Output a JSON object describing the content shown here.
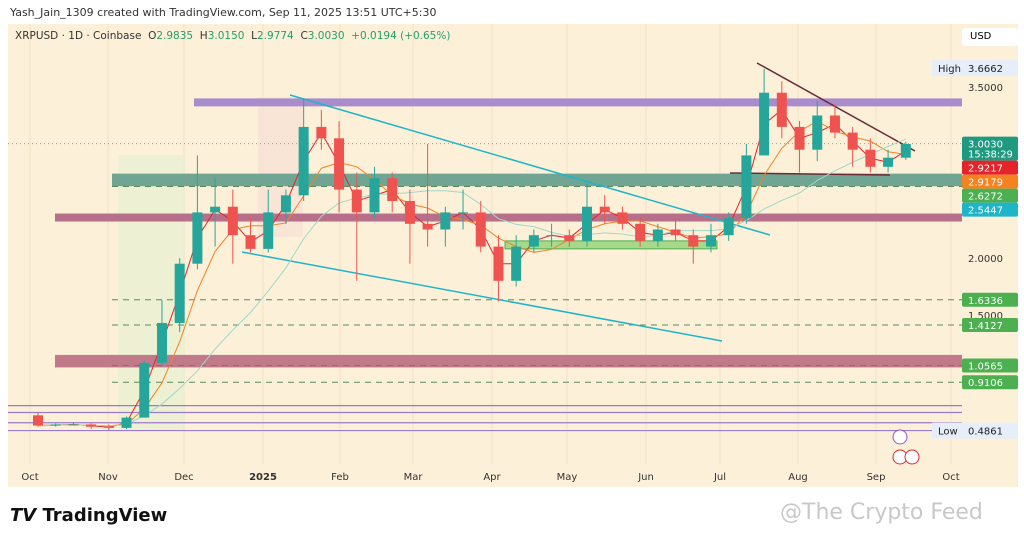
{
  "header": {
    "credit": "Yash_Jain_1309 created with TradingView.com, Sep 11, 2025 13:51 UTC+5:30",
    "symbol": "XRPUSD · 1D · Coinbase",
    "o_label": "O",
    "o": "2.9835",
    "h_label": "H",
    "h": "3.0150",
    "l_label": "L",
    "l": "2.9774",
    "c_label": "C",
    "c": "3.0030",
    "change": "+0.0194 (+0.65%)"
  },
  "currency": "USD",
  "footer": {
    "brand": "TradingView",
    "watermark": "@The Crypto Feed"
  },
  "colors": {
    "up": "#26a69a",
    "down": "#ef5350",
    "bg": "#fdf0d8"
  },
  "chart_data": {
    "type": "candlestick",
    "ylim": [
      0.35,
      3.9
    ],
    "y_scale": "linear",
    "y_ticks": [
      "3.5000",
      "2.0000",
      "1.5000"
    ],
    "x_ticks": [
      "Oct",
      "Nov",
      "Dec",
      "2025",
      "Feb",
      "Mar",
      "Apr",
      "May",
      "Jun",
      "Jul",
      "Aug",
      "Sep",
      "Oct"
    ],
    "high_label": {
      "text": "High",
      "value": "3.6662"
    },
    "low_label": {
      "text": "Low",
      "value": "0.4861"
    },
    "price_labels": [
      {
        "value": "3.0030",
        "sub": "15:38:29",
        "color": "#1f9a80"
      },
      {
        "value": "2.9217",
        "color": "#e5232b"
      },
      {
        "value": "2.9179",
        "color": "#f58220"
      },
      {
        "value": "2.6272",
        "color": "#4caf50"
      },
      {
        "value": "2.5447",
        "color": "#1fb5c8"
      },
      {
        "value": "1.6336",
        "color": "#4caf50"
      },
      {
        "value": "1.4127",
        "color": "#4caf50"
      },
      {
        "value": "1.0565",
        "color": "#4caf50"
      },
      {
        "value": "0.9106",
        "color": "#4caf50"
      }
    ],
    "candles_weekly_approx": [
      [
        "2024-10-01",
        0.62,
        0.64,
        0.52,
        0.53
      ],
      [
        "2024-10-08",
        0.53,
        0.55,
        0.52,
        0.54
      ],
      [
        "2024-10-15",
        0.54,
        0.56,
        0.53,
        0.54
      ],
      [
        "2024-10-22",
        0.54,
        0.55,
        0.5,
        0.52
      ],
      [
        "2024-10-29",
        0.52,
        0.54,
        0.49,
        0.51
      ],
      [
        "2024-11-05",
        0.51,
        0.61,
        0.5,
        0.6
      ],
      [
        "2024-11-12",
        0.6,
        1.1,
        0.6,
        1.08
      ],
      [
        "2024-11-19",
        1.08,
        1.63,
        1.05,
        1.43
      ],
      [
        "2024-11-26",
        1.43,
        2.0,
        1.35,
        1.95
      ],
      [
        "2024-12-03",
        1.95,
        2.9,
        1.9,
        2.4
      ],
      [
        "2024-12-10",
        2.4,
        2.7,
        2.1,
        2.45
      ],
      [
        "2024-12-17",
        2.45,
        2.6,
        1.95,
        2.2
      ],
      [
        "2024-12-24",
        2.2,
        2.35,
        2.05,
        2.08
      ],
      [
        "2024-12-31",
        2.08,
        2.6,
        2.05,
        2.4
      ],
      [
        "2025-01-07",
        2.4,
        2.6,
        2.3,
        2.55
      ],
      [
        "2025-01-14",
        2.55,
        3.4,
        2.5,
        3.15
      ],
      [
        "2025-01-21",
        3.15,
        3.3,
        2.95,
        3.05
      ],
      [
        "2025-01-28",
        3.05,
        3.2,
        2.4,
        2.6
      ],
      [
        "2025-02-04",
        2.6,
        2.75,
        1.8,
        2.4
      ],
      [
        "2025-02-11",
        2.4,
        2.8,
        2.35,
        2.7
      ],
      [
        "2025-02-18",
        2.7,
        2.75,
        2.4,
        2.5
      ],
      [
        "2025-02-25",
        2.5,
        2.6,
        1.95,
        2.3
      ],
      [
        "2025-03-04",
        2.3,
        3.0,
        2.1,
        2.25
      ],
      [
        "2025-03-11",
        2.25,
        2.45,
        2.1,
        2.4
      ],
      [
        "2025-03-18",
        2.4,
        2.6,
        2.25,
        2.4
      ],
      [
        "2025-03-25",
        2.4,
        2.5,
        2.05,
        2.1
      ],
      [
        "2025-04-01",
        2.1,
        2.2,
        1.62,
        1.8
      ],
      [
        "2025-04-08",
        1.8,
        2.2,
        1.75,
        2.1
      ],
      [
        "2025-04-15",
        2.1,
        2.25,
        2.05,
        2.2
      ],
      [
        "2025-04-22",
        2.2,
        2.3,
        2.1,
        2.2
      ],
      [
        "2025-04-29",
        2.2,
        2.25,
        2.1,
        2.15
      ],
      [
        "2025-05-06",
        2.15,
        2.65,
        2.1,
        2.45
      ],
      [
        "2025-05-13",
        2.45,
        2.55,
        2.3,
        2.4
      ],
      [
        "2025-05-20",
        2.4,
        2.45,
        2.25,
        2.3
      ],
      [
        "2025-05-27",
        2.3,
        2.35,
        2.1,
        2.15
      ],
      [
        "2025-06-03",
        2.15,
        2.3,
        2.1,
        2.25
      ],
      [
        "2025-06-10",
        2.25,
        2.35,
        2.15,
        2.2
      ],
      [
        "2025-06-17",
        2.2,
        2.25,
        1.95,
        2.1
      ],
      [
        "2025-06-24",
        2.1,
        2.3,
        2.05,
        2.2
      ],
      [
        "2025-07-01",
        2.2,
        2.4,
        2.15,
        2.35
      ],
      [
        "2025-07-08",
        2.35,
        3.0,
        2.3,
        2.9
      ],
      [
        "2025-07-15",
        2.9,
        3.66,
        2.9,
        3.45
      ],
      [
        "2025-07-22",
        3.45,
        3.55,
        3.05,
        3.15
      ],
      [
        "2025-07-29",
        3.15,
        3.2,
        2.75,
        2.95
      ],
      [
        "2025-08-05",
        2.95,
        3.38,
        2.85,
        3.25
      ],
      [
        "2025-08-12",
        3.25,
        3.35,
        3.05,
        3.1
      ],
      [
        "2025-08-19",
        3.1,
        3.15,
        2.8,
        2.95
      ],
      [
        "2025-08-26",
        2.95,
        3.05,
        2.75,
        2.8
      ],
      [
        "2025-09-02",
        2.8,
        2.95,
        2.75,
        2.88
      ],
      [
        "2025-09-09",
        2.88,
        3.02,
        2.86,
        3.0
      ]
    ]
  }
}
